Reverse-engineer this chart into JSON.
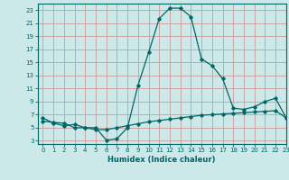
{
  "xlabel": "Humidex (Indice chaleur)",
  "background_color": "#cce8e8",
  "grid_color": "#cc9999",
  "line_color": "#006666",
  "xlim": [
    -0.5,
    23
  ],
  "ylim": [
    2.5,
    24
  ],
  "xticks": [
    0,
    1,
    2,
    3,
    4,
    5,
    6,
    7,
    8,
    9,
    10,
    11,
    12,
    13,
    14,
    15,
    16,
    17,
    18,
    19,
    20,
    21,
    22,
    23
  ],
  "yticks": [
    3,
    5,
    7,
    9,
    11,
    13,
    15,
    17,
    19,
    21,
    23
  ],
  "line1_x": [
    0,
    1,
    2,
    3,
    4,
    5,
    6,
    7,
    8,
    9,
    10,
    11,
    12,
    13,
    14,
    15,
    16,
    17,
    18,
    19,
    20,
    21,
    22,
    23
  ],
  "line1_y": [
    6.0,
    5.8,
    5.7,
    5.0,
    5.0,
    4.7,
    4.7,
    5.0,
    5.3,
    5.6,
    5.9,
    6.1,
    6.3,
    6.5,
    6.7,
    6.9,
    7.0,
    7.1,
    7.2,
    7.3,
    7.4,
    7.5,
    7.6,
    6.5
  ],
  "line2_x": [
    0,
    1,
    2,
    3,
    4,
    5,
    6,
    7,
    8,
    9,
    10,
    11,
    12,
    13,
    14,
    15,
    16,
    17,
    18,
    19,
    20,
    21,
    22,
    23
  ],
  "line2_y": [
    6.5,
    5.7,
    5.3,
    5.5,
    5.0,
    5.0,
    3.1,
    3.3,
    5.0,
    11.5,
    16.5,
    21.7,
    23.3,
    23.3,
    22.0,
    15.5,
    14.5,
    12.5,
    8.0,
    7.8,
    8.2,
    9.0,
    9.5,
    6.5
  ]
}
